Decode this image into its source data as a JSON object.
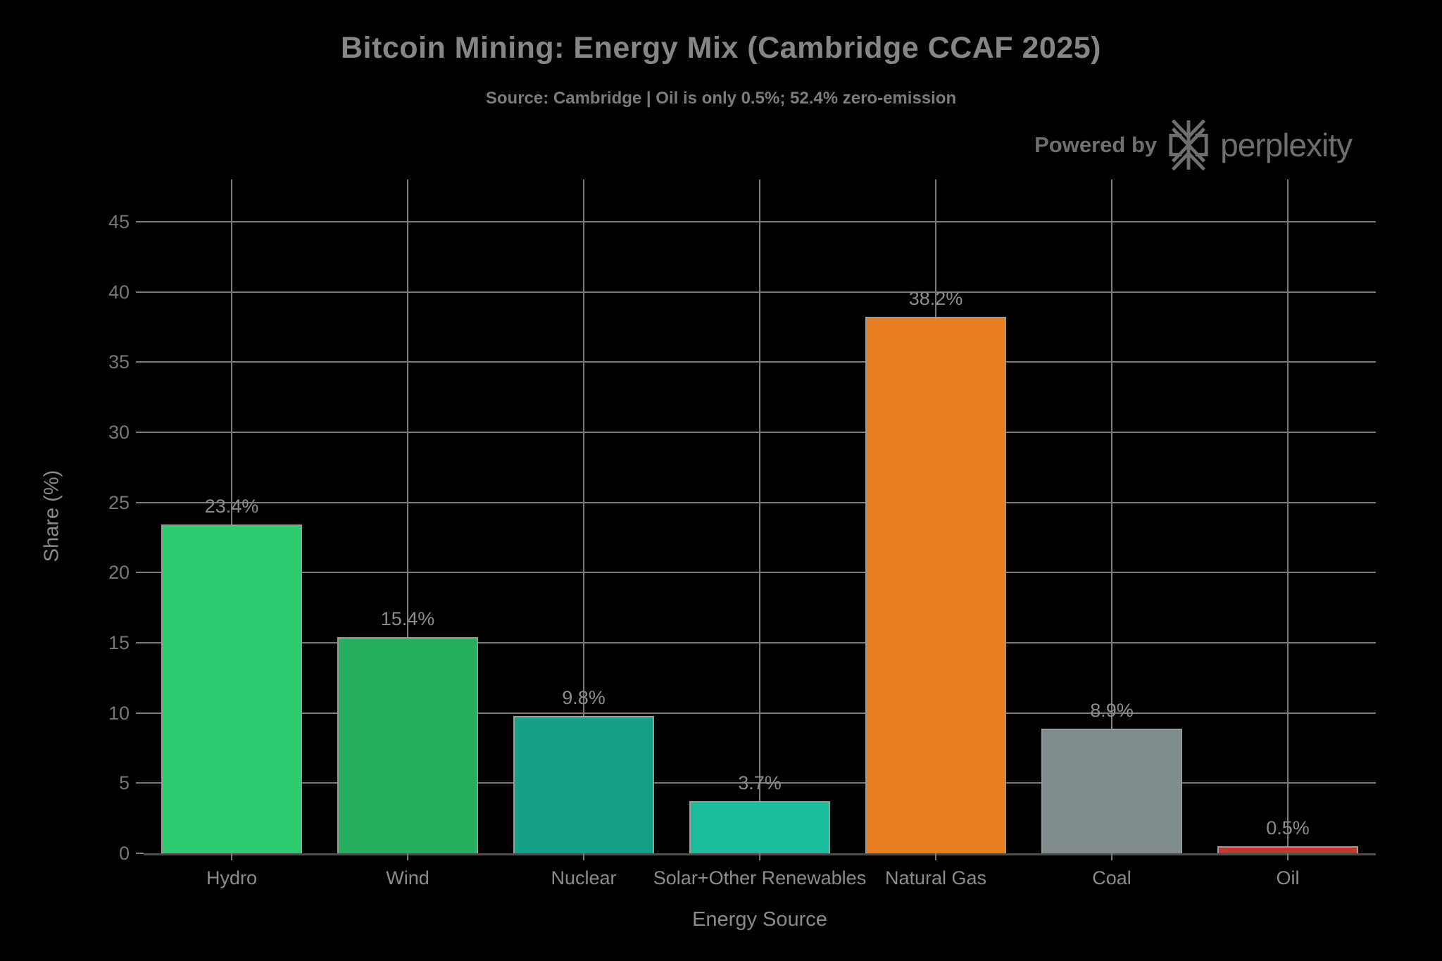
{
  "header": {
    "title": "Bitcoin Mining: Energy Mix (Cambridge CCAF 2025)",
    "subtitle": "Source: Cambridge | Oil is only 0.5%; 52.4% zero-emission"
  },
  "branding": {
    "powered_by_label": "Powered by",
    "brand_name": "perplexity",
    "logo_icon": "perplexity-starburst-icon",
    "color": "#6f6f6f"
  },
  "chart_data": {
    "type": "bar",
    "title": "Bitcoin Mining: Energy Mix (Cambridge CCAF 2025)",
    "subtitle": "Source: Cambridge | Oil is only 0.5%; 52.4% zero-emission",
    "xlabel": "Energy Source",
    "ylabel": "Share (%)",
    "categories": [
      "Hydro",
      "Wind",
      "Nuclear",
      "Solar+Other Renewables",
      "Natural Gas",
      "Coal",
      "Oil"
    ],
    "values": [
      23.4,
      15.4,
      9.8,
      3.7,
      38.2,
      8.9,
      0.5
    ],
    "value_labels": [
      "23.4%",
      "15.4%",
      "9.8%",
      "3.7%",
      "38.2%",
      "8.9%",
      "0.5%"
    ],
    "bar_colors": [
      "#2ecc71",
      "#27ae60",
      "#16a085",
      "#1abc9c",
      "#e67e22",
      "#7f8c8d",
      "#c0392b"
    ],
    "yticks": [
      0,
      5,
      10,
      15,
      20,
      25,
      30,
      35,
      40,
      45
    ],
    "ylim": [
      0,
      48
    ],
    "grid": true,
    "legend": "none",
    "background_color": "#000000",
    "tick_label_color": "#767676",
    "value_label_color": "#8c8c8c",
    "grid_color": "#7b7b7b",
    "axis_color": "#4e4e4e",
    "bar_edge_color": "#9b9b9b"
  }
}
